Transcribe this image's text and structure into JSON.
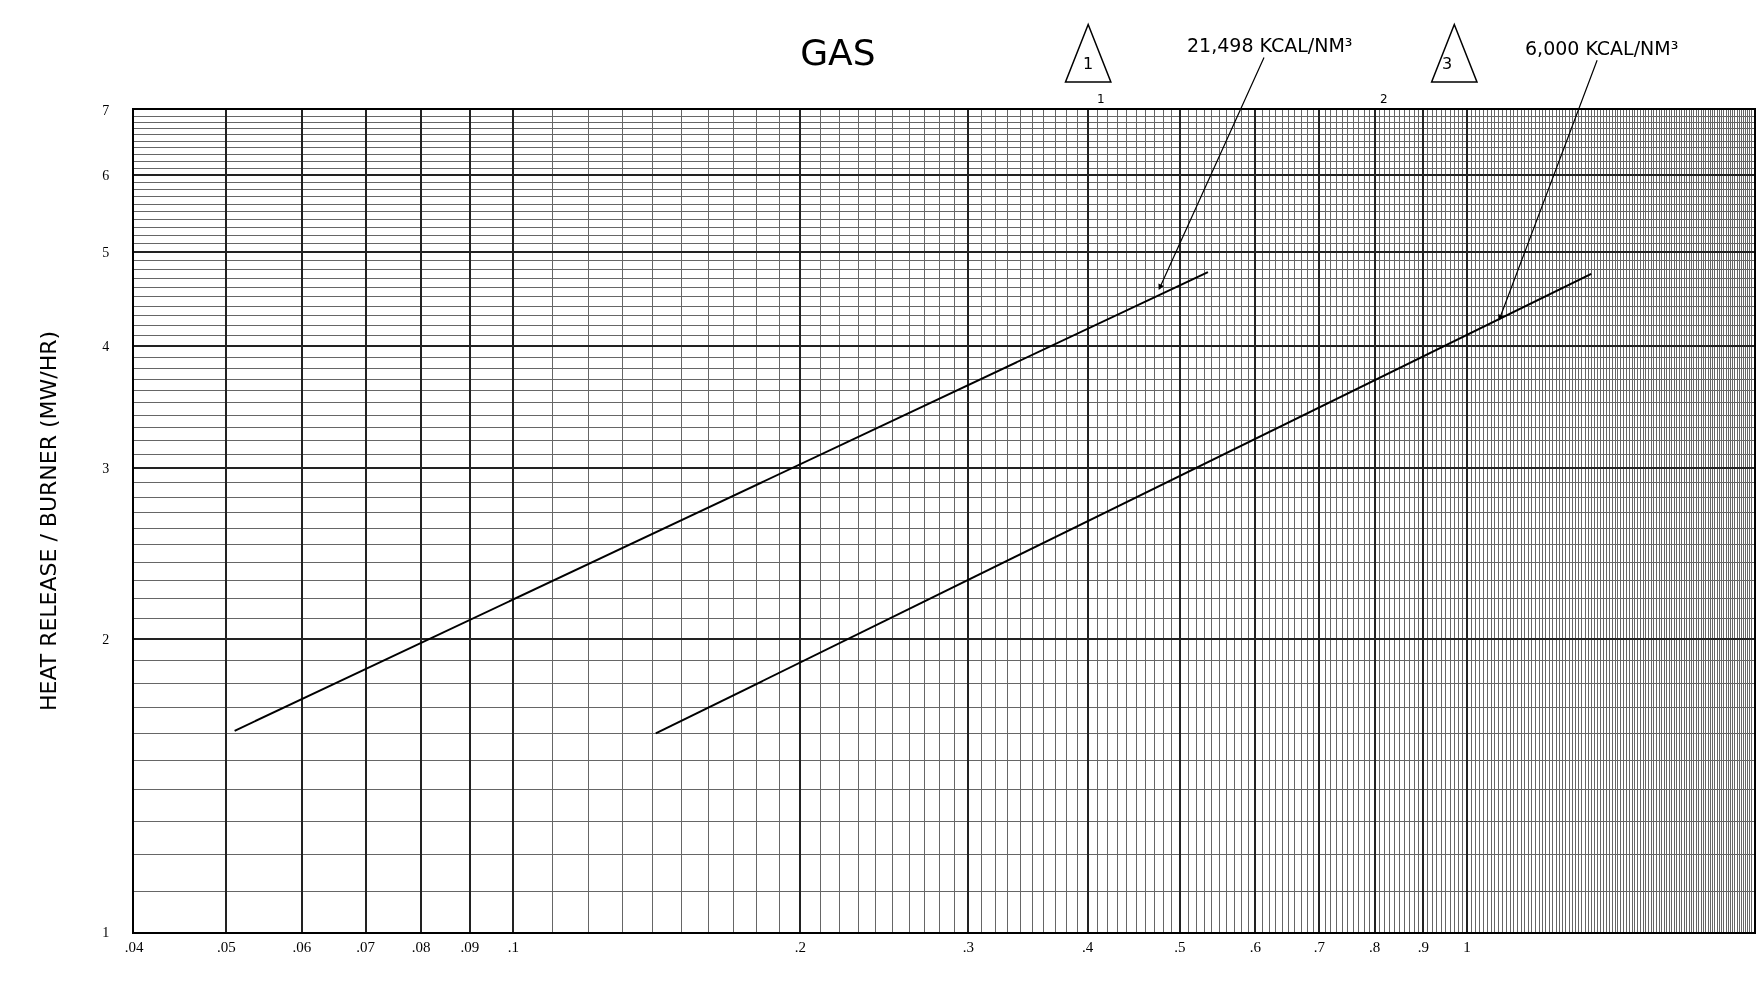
{
  "chart_data": {
    "type": "line",
    "title": "GAS",
    "ylabel": "HEAT RELEASE / BURNER (MW/HR)",
    "log": "xy",
    "grid": true,
    "marker": "none",
    "line_style": "solid",
    "xlim": [
      0.04,
      2
    ],
    "ylim": [
      1,
      7
    ],
    "xticks": [
      {
        "value": 0.04,
        "label": ".04"
      },
      {
        "value": 0.05,
        "label": ".05"
      },
      {
        "value": 0.06,
        "label": ".06"
      },
      {
        "value": 0.07,
        "label": ".07"
      },
      {
        "value": 0.08,
        "label": ".08"
      },
      {
        "value": 0.09,
        "label": ".09"
      },
      {
        "value": 0.1,
        "label": ".1"
      },
      {
        "value": 0.2,
        "label": ".2"
      },
      {
        "value": 0.3,
        "label": ".3"
      },
      {
        "value": 0.4,
        "label": ".4"
      },
      {
        "value": 0.5,
        "label": ".5"
      },
      {
        "value": 0.6,
        "label": ".6"
      },
      {
        "value": 0.7,
        "label": ".7"
      },
      {
        "value": 0.8,
        "label": ".8"
      },
      {
        "value": 0.9,
        "label": ".9"
      },
      1
    ],
    "yticks": [
      1,
      2,
      3,
      4,
      5,
      6,
      7
    ],
    "series": [
      {
        "color": "#000000",
        "x": [
          0.051,
          0.535
        ],
        "values": [
          1.61,
          4.77
        ]
      },
      {
        "color": "#000000",
        "x": [
          0.141,
          1.35
        ],
        "values": [
          1.6,
          4.75
        ]
      }
    ],
    "annotations": [
      {
        "text": "21,498 KCAL/NM³",
        "x": 0.475,
        "y": 4.57
      },
      {
        "text": "6,000 KCAL/NM³",
        "x": 1.08,
        "y": 4.25
      },
      "1",
      "3",
      "1",
      "2"
    ]
  }
}
